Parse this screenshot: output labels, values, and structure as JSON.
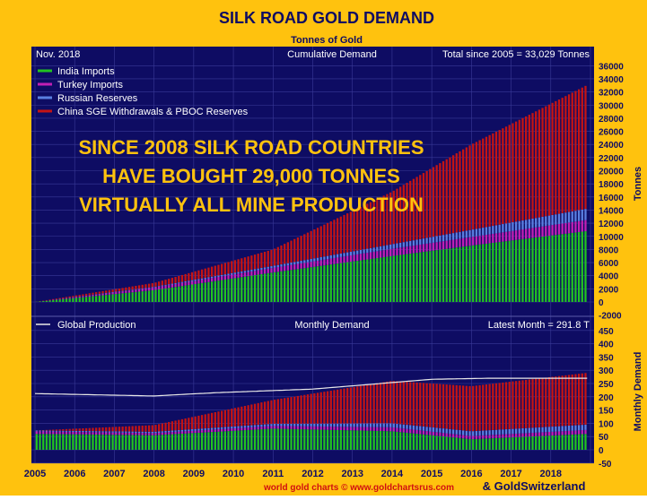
{
  "title": "SILK ROAD GOLD DEMAND",
  "subtitle": "Tonnes of Gold",
  "top_panel": {
    "date_label": "Nov. 2018",
    "mode_label": "Cumulative Demand",
    "total_label": "Total since 2005 = 33,029 Tonnes",
    "y_axis_label": "Tonnes",
    "y_ticks": [
      "36000",
      "34000",
      "32000",
      "30000",
      "28000",
      "26000",
      "24000",
      "22000",
      "20000",
      "18000",
      "16000",
      "14000",
      "12000",
      "10000",
      "8000",
      "6000",
      "4000",
      "2000",
      "0",
      "-2000"
    ],
    "headline": [
      "SINCE 2008 SILK ROAD COUNTRIES",
      "HAVE BOUGHT 29,000 TONNES",
      "VIRTUALLY ALL MINE PRODUCTION"
    ]
  },
  "bottom_panel": {
    "legend_label": "Global Production",
    "mode_label": "Monthly Demand",
    "latest_label": "Latest Month = 291.8 T",
    "y_axis_label": "Monthly Demand",
    "y_ticks": [
      "450",
      "400",
      "350",
      "300",
      "250",
      "200",
      "150",
      "100",
      "50",
      "0",
      "-50"
    ]
  },
  "x_ticks": [
    "2005",
    "2006",
    "2007",
    "2008",
    "2009",
    "2010",
    "2011",
    "2012",
    "2013",
    "2014",
    "2015",
    "2016",
    "2017",
    "2018"
  ],
  "footer": {
    "source": "world gold charts © www.goldchartsrus.com",
    "partner": "& GoldSwitzerland"
  },
  "colors": {
    "frame": "#ffc20e",
    "plot_bg": "#0e0c63",
    "grid": "#3a3a98",
    "india": "#21c321",
    "turkey": "#c21fb4",
    "russia": "#5a7fe0",
    "china": "#c41414",
    "production": "#e8e8e8",
    "headline": "#ffc20e",
    "title": "#0e0c63"
  },
  "chart_data": [
    {
      "type": "bar",
      "stacked": true,
      "title": "Cumulative Demand",
      "ylabel": "Tonnes",
      "ylim": [
        -2000,
        36000
      ],
      "x_range": [
        "2005-01",
        "2018-11"
      ],
      "series": [
        {
          "name": "India Imports",
          "x": [
            2005,
            2008,
            2011,
            2014,
            2016,
            2018.9
          ],
          "values": [
            0,
            1800,
            4500,
            7000,
            8600,
            10800
          ]
        },
        {
          "name": "Turkey Imports",
          "x": [
            2005,
            2008,
            2011,
            2014,
            2016,
            2018.9
          ],
          "values": [
            0,
            400,
            700,
            1100,
            1300,
            1700
          ]
        },
        {
          "name": "Russian Reserves",
          "x": [
            2005,
            2008,
            2011,
            2014,
            2016,
            2018.9
          ],
          "values": [
            0,
            100,
            300,
            700,
            1100,
            1700
          ]
        },
        {
          "name": "China SGE Withdrawals & PBOC Reserves",
          "x": [
            2005,
            2008,
            2011,
            2014,
            2016,
            2018.9
          ],
          "values": [
            0,
            600,
            2500,
            8000,
            13000,
            18800
          ]
        }
      ],
      "total": 33029
    },
    {
      "type": "bar",
      "stacked": true,
      "title": "Monthly Demand",
      "ylabel": "Monthly Demand",
      "ylim": [
        -50,
        450
      ],
      "x_range": [
        "2005-01",
        "2018-11"
      ],
      "series": [
        {
          "name": "India Imports",
          "x": [
            2005,
            2008,
            2011,
            2014,
            2016,
            2018.9
          ],
          "values": [
            60,
            55,
            80,
            70,
            40,
            60
          ]
        },
        {
          "name": "Turkey Imports",
          "x": [
            2005,
            2008,
            2011,
            2014,
            2016,
            2018.9
          ],
          "values": [
            10,
            8,
            10,
            15,
            12,
            15
          ]
        },
        {
          "name": "Russian Reserves",
          "x": [
            2005,
            2008,
            2011,
            2014,
            2016,
            2018.9
          ],
          "values": [
            3,
            5,
            8,
            15,
            18,
            20
          ]
        },
        {
          "name": "China SGE Withdrawals & PBOC Reserves",
          "x": [
            2005,
            2008,
            2011,
            2014,
            2016,
            2018.9
          ],
          "values": [
            0,
            25,
            90,
            160,
            170,
            195
          ]
        },
        {
          "name": "Global Production",
          "type": "line",
          "x": [
            2005,
            2008,
            2009.5,
            2012,
            2012.9,
            2015,
            2016.5,
            2018.9
          ],
          "values": [
            212,
            203,
            215,
            229,
            240,
            266,
            270,
            270
          ]
        }
      ],
      "latest_month": 291.8
    }
  ]
}
